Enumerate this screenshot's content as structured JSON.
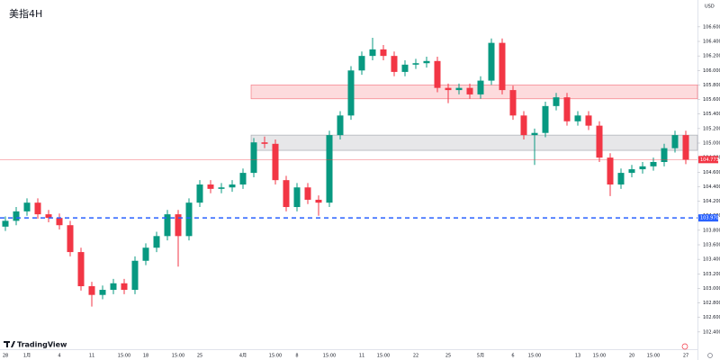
{
  "chart_data": {
    "type": "candlestick",
    "title": "美指4H",
    "currency": "USD",
    "brand": "TradingView",
    "up_color": "#089981",
    "down_color": "#f23645",
    "ylim": [
      102.2,
      106.97
    ],
    "yticks": [
      {
        "value": 102.4,
        "label": "102.400"
      },
      {
        "value": 102.6,
        "label": "102.600"
      },
      {
        "value": 102.8,
        "label": "102.800"
      },
      {
        "value": 103.0,
        "label": "103.000"
      },
      {
        "value": 103.2,
        "label": "103.200"
      },
      {
        "value": 103.4,
        "label": "103.400"
      },
      {
        "value": 103.6,
        "label": "103.600"
      },
      {
        "value": 103.8,
        "label": "103.800"
      },
      {
        "value": 104.0,
        "label": "104.000"
      },
      {
        "value": 104.2,
        "label": "104.200"
      },
      {
        "value": 104.4,
        "label": "104.400"
      },
      {
        "value": 104.6,
        "label": "104.600"
      },
      {
        "value": 104.8,
        "label": "104.800"
      },
      {
        "value": 105.0,
        "label": "105.000"
      },
      {
        "value": 105.2,
        "label": "105.200"
      },
      {
        "value": 105.4,
        "label": "105.400"
      },
      {
        "value": 105.6,
        "label": "105.600"
      },
      {
        "value": 105.8,
        "label": "105.800"
      },
      {
        "value": 106.0,
        "label": "106.000"
      },
      {
        "value": 106.2,
        "label": "106.200"
      },
      {
        "value": 106.4,
        "label": "106.400"
      },
      {
        "value": 106.6,
        "label": "106.600"
      }
    ],
    "categories": [
      "28",
      null,
      "1月",
      null,
      null,
      "4",
      null,
      null,
      "11",
      null,
      null,
      "15:00",
      null,
      "18",
      null,
      null,
      "15:00",
      null,
      "25",
      null,
      null,
      null,
      "4月",
      null,
      null,
      "15:00",
      null,
      "8",
      null,
      null,
      "15:00",
      null,
      null,
      "11",
      null,
      "15:00",
      null,
      null,
      "22",
      null,
      null,
      "25",
      null,
      null,
      "5月",
      null,
      null,
      "6",
      null,
      "15:00",
      null,
      null,
      null,
      "13",
      null,
      "15:00",
      null,
      null,
      "20",
      null,
      "15:00",
      null,
      null,
      "27"
    ],
    "candles": [
      [
        103.85,
        103.99,
        103.79,
        103.93
      ],
      [
        103.93,
        104.12,
        103.87,
        104.06
      ],
      [
        104.06,
        104.24,
        104.0,
        104.18
      ],
      [
        104.18,
        104.24,
        103.96,
        104.02
      ],
      [
        104.02,
        104.08,
        103.91,
        103.97
      ],
      [
        103.97,
        104.03,
        103.81,
        103.87
      ],
      [
        103.87,
        103.93,
        103.44,
        103.5
      ],
      [
        103.5,
        103.56,
        102.97,
        103.03
      ],
      [
        103.03,
        103.09,
        102.75,
        102.91
      ],
      [
        102.91,
        103.04,
        102.85,
        102.98
      ],
      [
        102.98,
        103.13,
        102.92,
        103.07
      ],
      [
        103.07,
        103.13,
        102.92,
        102.98
      ],
      [
        102.98,
        103.44,
        102.92,
        103.38
      ],
      [
        103.38,
        103.62,
        103.32,
        103.56
      ],
      [
        103.56,
        103.78,
        103.5,
        103.72
      ],
      [
        103.72,
        104.08,
        103.66,
        104.02
      ],
      [
        104.02,
        104.08,
        103.3,
        103.72
      ],
      [
        103.72,
        104.24,
        103.66,
        104.18
      ],
      [
        104.18,
        104.49,
        104.12,
        104.43
      ],
      [
        104.43,
        104.49,
        104.31,
        104.37
      ],
      [
        104.37,
        104.45,
        104.31,
        104.39
      ],
      [
        104.39,
        104.49,
        104.33,
        104.43
      ],
      [
        104.43,
        104.65,
        104.37,
        104.59
      ],
      [
        104.59,
        105.07,
        104.53,
        105.01
      ],
      [
        105.01,
        105.09,
        104.93,
        104.99
      ],
      [
        104.99,
        105.05,
        104.43,
        104.49
      ],
      [
        104.49,
        104.55,
        104.06,
        104.12
      ],
      [
        104.12,
        104.45,
        104.06,
        104.39
      ],
      [
        104.39,
        104.45,
        104.16,
        104.22
      ],
      [
        104.22,
        104.28,
        104.0,
        104.18
      ],
      [
        104.18,
        105.17,
        104.12,
        105.11
      ],
      [
        105.11,
        105.44,
        105.05,
        105.38
      ],
      [
        105.38,
        106.06,
        105.32,
        106.0
      ],
      [
        106.0,
        106.26,
        105.94,
        106.2
      ],
      [
        106.2,
        106.45,
        106.14,
        106.29
      ],
      [
        106.29,
        106.35,
        106.14,
        106.2
      ],
      [
        106.2,
        106.26,
        105.92,
        105.98
      ],
      [
        105.98,
        106.14,
        105.92,
        106.08
      ],
      [
        106.08,
        106.16,
        106.02,
        106.1
      ],
      [
        106.1,
        106.19,
        106.04,
        106.13
      ],
      [
        106.13,
        106.19,
        105.7,
        105.76
      ],
      [
        105.76,
        105.82,
        105.55,
        105.73
      ],
      [
        105.73,
        105.82,
        105.67,
        105.76
      ],
      [
        105.76,
        105.82,
        105.61,
        105.67
      ],
      [
        105.67,
        105.92,
        105.61,
        105.86
      ],
      [
        105.86,
        106.44,
        105.8,
        106.38
      ],
      [
        106.38,
        106.44,
        105.67,
        105.73
      ],
      [
        105.73,
        105.79,
        105.32,
        105.38
      ],
      [
        105.38,
        105.44,
        105.05,
        105.11
      ],
      [
        105.11,
        105.2,
        104.7,
        105.14
      ],
      [
        105.14,
        105.57,
        105.08,
        105.51
      ],
      [
        105.51,
        105.69,
        105.45,
        105.63
      ],
      [
        105.63,
        105.69,
        105.24,
        105.3
      ],
      [
        105.3,
        105.44,
        105.24,
        105.38
      ],
      [
        105.38,
        105.44,
        105.18,
        105.24
      ],
      [
        105.24,
        105.3,
        104.74,
        104.8
      ],
      [
        104.8,
        104.86,
        104.27,
        104.43
      ],
      [
        104.43,
        104.65,
        104.37,
        104.59
      ],
      [
        104.59,
        104.7,
        104.53,
        104.64
      ],
      [
        104.64,
        104.74,
        104.58,
        104.68
      ],
      [
        104.68,
        104.8,
        104.62,
        104.74
      ],
      [
        104.74,
        104.99,
        104.68,
        104.93
      ],
      [
        104.93,
        105.17,
        104.87,
        105.11
      ],
      [
        105.11,
        105.17,
        104.71,
        104.77
      ]
    ],
    "zones": [
      {
        "ylim": [
          105.61,
          105.8
        ],
        "color": "#f23645"
      },
      {
        "ylim": [
          104.9,
          105.11
        ],
        "color": "#787b86"
      }
    ],
    "price_lines": [
      {
        "value": 104.773,
        "label": "104.773",
        "color": "#f23645",
        "style": "solid"
      },
      {
        "value": 103.97,
        "label": "103.970",
        "color": "#2962ff",
        "style": "dashed"
      }
    ]
  }
}
